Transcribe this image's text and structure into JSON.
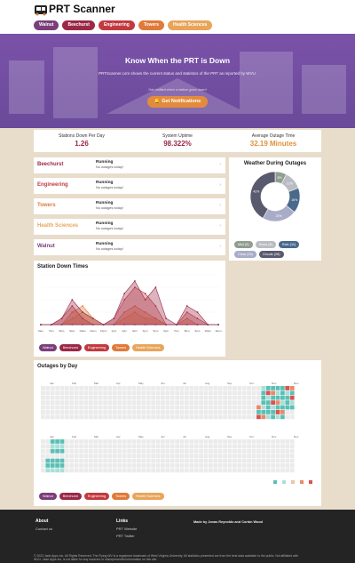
{
  "header": {
    "brand": "PRT Scanner",
    "nav": [
      {
        "label": "Walnut",
        "color": "#7a3e7a"
      },
      {
        "label": "Beechurst",
        "color": "#9b2847"
      },
      {
        "label": "Engineering",
        "color": "#c13a3f"
      },
      {
        "label": "Towers",
        "color": "#e07a3a"
      },
      {
        "label": "Health Sciences",
        "color": "#e8a55a"
      }
    ]
  },
  "hero": {
    "title": "Know When the PRT is Down",
    "subtitle": "PRTScanner.com shows the current status and statistics of the PRT as reported by WVU.",
    "note": "Get notified when a station goes down!",
    "button": "Get Notifications"
  },
  "stats": [
    {
      "label": "Stations Down Per Day",
      "value": "1.26",
      "color": "#9b2847"
    },
    {
      "label": "System Uptime",
      "value": "98.322%",
      "color": "#9b2847"
    },
    {
      "label": "Average Outage Time",
      "value": "32.19 Minutes",
      "color": "#e0913a"
    }
  ],
  "stations": [
    {
      "name": "Beechurst",
      "status": "Running",
      "desc": "No outages today!",
      "color": "#9b2847"
    },
    {
      "name": "Engineering",
      "status": "Running",
      "desc": "No outages today!",
      "color": "#c13a3f"
    },
    {
      "name": "Towers",
      "status": "Running",
      "desc": "No outages today!",
      "color": "#e07a3a"
    },
    {
      "name": "Health Sciences",
      "status": "Running",
      "desc": "No outages today!",
      "color": "#e8a55a"
    },
    {
      "name": "Walnut",
      "status": "Running",
      "desc": "No outages today!",
      "color": "#7a3e7a"
    }
  ],
  "weather": {
    "title": "Weather During Outages",
    "legend": [
      {
        "label": "Mist (5)",
        "color": "#8f9e8f"
      },
      {
        "label": "Snow (8)",
        "color": "#b9bcc2"
      },
      {
        "label": "Rain (11)",
        "color": "#4a6a8c"
      },
      {
        "label": "Clear (15)",
        "color": "#a9acc7"
      },
      {
        "label": "Clouds (28)",
        "color": "#595a6e"
      }
    ]
  },
  "chart_data": [
    {
      "type": "pie",
      "title": "Weather During Outages",
      "categories": [
        "Mist",
        "Snow",
        "Rain",
        "Clear",
        "Clouds"
      ],
      "values": [
        5,
        8,
        11,
        15,
        28
      ],
      "labels": [
        "8%",
        "12%",
        "16%",
        "22%",
        "42%"
      ]
    },
    {
      "type": "area",
      "title": "Station Down Times",
      "categories": [
        "6am",
        "7am",
        "8am",
        "9am",
        "10am",
        "11am",
        "12pm",
        "1pm",
        "2pm",
        "3pm",
        "4pm",
        "5pm",
        "6pm",
        "7pm",
        "8pm",
        "9pm",
        "10pm",
        "11pm"
      ],
      "series": [
        {
          "name": "Walnut",
          "color": "#7a3e7a",
          "values": [
            0,
            0,
            0,
            0,
            0,
            0,
            0,
            0,
            0,
            0,
            0,
            0,
            0,
            0,
            0,
            0,
            0,
            0
          ]
        },
        {
          "name": "Beechurst",
          "color": "#9b2847",
          "values": [
            0,
            0,
            1,
            4,
            2,
            1,
            0,
            1,
            5,
            7,
            4,
            6,
            1,
            0,
            3,
            2,
            0,
            0
          ]
        },
        {
          "name": "Engineering",
          "color": "#c13a3f",
          "values": [
            0,
            0,
            1,
            3,
            1,
            0,
            0,
            1,
            4,
            6,
            5,
            3,
            0,
            0,
            2,
            1,
            0,
            0
          ]
        },
        {
          "name": "Towers",
          "color": "#e07a3a",
          "values": [
            0,
            0,
            0,
            2,
            3,
            1,
            0,
            0,
            2,
            3,
            2,
            1,
            0,
            0,
            1,
            0,
            0,
            0
          ]
        },
        {
          "name": "Health Sciences",
          "color": "#e8a55a",
          "values": [
            0,
            0,
            0,
            1,
            2,
            1,
            0,
            0,
            1,
            2,
            1,
            1,
            0,
            0,
            0,
            0,
            0,
            0
          ]
        }
      ]
    }
  ],
  "downtimes": {
    "title": "Station Down Times"
  },
  "outages": {
    "title": "Outages by Day",
    "months1": [
      "Jan",
      "Feb",
      "Mar",
      "Apr",
      "May",
      "Jun",
      "Jul",
      "Aug",
      "Sep",
      "Oct",
      "Nov",
      "Dec"
    ],
    "months2": [
      "Jan",
      "Feb",
      "Mar",
      "Apr",
      "May",
      "Jun",
      "Jul",
      "Aug",
      "Sep",
      "Oct",
      "Nov",
      "Dec"
    ],
    "scale": [
      "#5bbfb5",
      "#aadfd8",
      "#f0c2a8",
      "#e88a6a",
      "#d9534f"
    ]
  },
  "legend_stations": [
    {
      "label": "Walnut",
      "color": "#7a3e7a"
    },
    {
      "label": "Beechurst",
      "color": "#9b2847"
    },
    {
      "label": "Engineering",
      "color": "#c13a3f"
    },
    {
      "label": "Towers",
      "color": "#e07a3a"
    },
    {
      "label": "Health Sciences",
      "color": "#e8a55a"
    }
  ],
  "footer": {
    "about_title": "About",
    "about_link": "Contact us",
    "links_title": "Links",
    "link1": "PRT Website",
    "link2": "PRT Twitter",
    "made_by": "Made by Jonas Reynolds and Corbin Wood",
    "copyright": "© 2023 Jade Apps Inc. All Rights Reserved. The Flying WV is a registered trademark of West Virginia University. All statistics presented are from the best data available to the public. Not affiliated with WVU. Jade Apps Inc. is not liable for any incorrect or misrepresented information on this site."
  }
}
